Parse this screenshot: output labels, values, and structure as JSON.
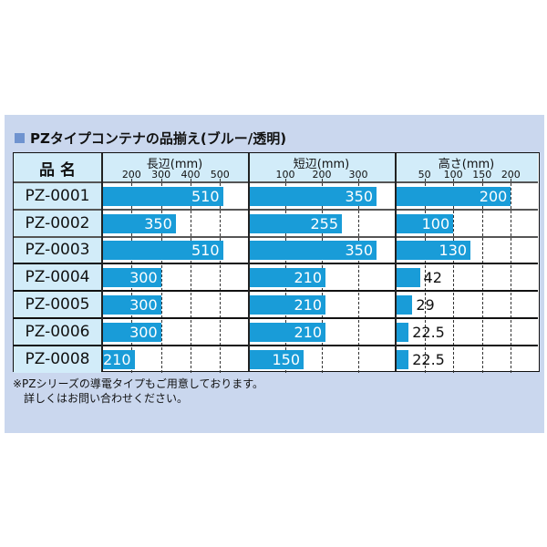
{
  "title": "PZタイプコンテナの品揃え(ブルー/透明)",
  "title_icon": "square-bullet-icon",
  "colors": {
    "bar": "#199cd8",
    "header": "#d2ecf9",
    "panel": "#cad7ee",
    "bar_text": "#ffffff"
  },
  "chart_data": {
    "type": "bar",
    "name_header": "品 名",
    "categories": [
      "PZ-0001",
      "PZ-0002",
      "PZ-0003",
      "PZ-0004",
      "PZ-0005",
      "PZ-0006",
      "PZ-0008"
    ],
    "series": [
      {
        "name": "長辺(mm)",
        "values": [
          510,
          350,
          510,
          300,
          300,
          300,
          210
        ],
        "labels": [
          "510",
          "350",
          "510",
          "300",
          "300",
          "300",
          "210"
        ],
        "ticks": [
          200,
          300,
          400,
          500
        ],
        "xlim": [
          100,
          595
        ]
      },
      {
        "name": "短辺(mm)",
        "values": [
          350,
          255,
          350,
          210,
          210,
          210,
          150
        ],
        "labels": [
          "350",
          "255",
          "350",
          "210",
          "210",
          "210",
          "150"
        ],
        "ticks": [
          100,
          200,
          300
        ],
        "xlim": [
          0,
          400
        ]
      },
      {
        "name": "高さ(mm)",
        "values": [
          200,
          100,
          130,
          42,
          29,
          22.5,
          22.5
        ],
        "labels": [
          "200",
          "100",
          "130",
          "42",
          "29",
          "22.5",
          "22.5"
        ],
        "ticks": [
          50,
          100,
          150,
          200
        ],
        "xlim": [
          0,
          247
        ]
      }
    ],
    "grid": true,
    "orientation": "horizontal"
  },
  "notes": [
    "※PZシリーズの導電タイプもご用意しております。",
    "　詳しくはお問い合わせください。"
  ]
}
